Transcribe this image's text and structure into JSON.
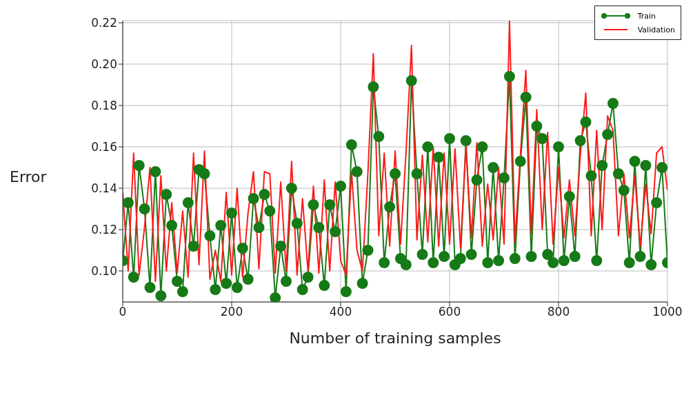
{
  "chart_data": {
    "type": "line",
    "xlabel": "Number of training samples",
    "ylabel": "Error",
    "x": [
      0,
      10,
      20,
      30,
      40,
      50,
      60,
      70,
      80,
      90,
      100,
      110,
      120,
      130,
      140,
      150,
      160,
      170,
      180,
      190,
      200,
      210,
      220,
      230,
      240,
      250,
      260,
      270,
      280,
      290,
      300,
      310,
      320,
      330,
      340,
      350,
      360,
      370,
      380,
      390,
      400,
      410,
      420,
      430,
      440,
      450,
      460,
      470,
      480,
      490,
      500,
      510,
      520,
      530,
      540,
      550,
      560,
      570,
      580,
      590,
      600,
      610,
      620,
      630,
      640,
      650,
      660,
      670,
      680,
      690,
      700,
      710,
      720,
      730,
      740,
      750,
      760,
      770,
      780,
      790,
      800,
      810,
      820,
      830,
      840,
      850,
      860,
      870,
      880,
      890,
      900,
      910,
      920,
      930,
      940,
      950,
      960,
      970,
      980,
      990,
      1000
    ],
    "series": [
      {
        "name": "Train",
        "color": "#167a16",
        "marker": "circle",
        "values": [
          0.105,
          0.133,
          0.097,
          0.151,
          0.13,
          0.092,
          0.148,
          0.088,
          0.137,
          0.122,
          0.095,
          0.09,
          0.133,
          0.112,
          0.149,
          0.147,
          0.117,
          0.091,
          0.122,
          0.094,
          0.128,
          0.092,
          0.111,
          0.096,
          0.135,
          0.121,
          0.137,
          0.129,
          0.087,
          0.112,
          0.095,
          0.14,
          0.123,
          0.091,
          0.097,
          0.132,
          0.121,
          0.093,
          0.132,
          0.119,
          0.141,
          0.09,
          0.161,
          0.148,
          0.094,
          0.11,
          0.189,
          0.165,
          0.104,
          0.131,
          0.147,
          0.106,
          0.103,
          0.192,
          0.147,
          0.108,
          0.16,
          0.104,
          0.155,
          0.107,
          0.164,
          0.103,
          0.106,
          0.163,
          0.108,
          0.144,
          0.16,
          0.104,
          0.15,
          0.105,
          0.145,
          0.194,
          0.106,
          0.153,
          0.184,
          0.107,
          0.17,
          0.164,
          0.108,
          0.104,
          0.16,
          0.105,
          0.136,
          0.107,
          0.163,
          0.172,
          0.146,
          0.105,
          0.151,
          0.166,
          0.181,
          0.147,
          0.139,
          0.104,
          0.153,
          0.107,
          0.151,
          0.103,
          0.133,
          0.15,
          0.104
        ]
      },
      {
        "name": "Validation",
        "color": "#ff1a1a",
        "marker": "none",
        "values": [
          0.138,
          0.1,
          0.157,
          0.098,
          0.121,
          0.15,
          0.095,
          0.146,
          0.1,
          0.133,
          0.099,
          0.129,
          0.097,
          0.157,
          0.103,
          0.158,
          0.096,
          0.11,
          0.095,
          0.138,
          0.098,
          0.14,
          0.097,
          0.128,
          0.148,
          0.101,
          0.148,
          0.147,
          0.099,
          0.143,
          0.1,
          0.153,
          0.098,
          0.135,
          0.1,
          0.141,
          0.099,
          0.144,
          0.1,
          0.143,
          0.105,
          0.098,
          0.148,
          0.11,
          0.1,
          0.147,
          0.205,
          0.117,
          0.157,
          0.112,
          0.158,
          0.113,
          0.157,
          0.209,
          0.115,
          0.156,
          0.114,
          0.16,
          0.112,
          0.157,
          0.113,
          0.159,
          0.111,
          0.16,
          0.116,
          0.162,
          0.112,
          0.142,
          0.115,
          0.15,
          0.113,
          0.221,
          0.114,
          0.156,
          0.197,
          0.118,
          0.178,
          0.12,
          0.167,
          0.113,
          0.15,
          0.116,
          0.144,
          0.117,
          0.156,
          0.186,
          0.117,
          0.168,
          0.12,
          0.175,
          0.168,
          0.117,
          0.147,
          0.116,
          0.146,
          0.112,
          0.142,
          0.118,
          0.157,
          0.16,
          0.139
        ]
      }
    ],
    "xlim": [
      0,
      1000
    ],
    "xticks": [
      0,
      200,
      400,
      600,
      800,
      1000
    ],
    "ylim": [
      0.085,
      0.221
    ],
    "yticks": [
      {
        "value": 0.1,
        "label": "0.10"
      },
      {
        "value": 0.12,
        "label": "0.12"
      },
      {
        "value": 0.14,
        "label": "0.14"
      },
      {
        "value": 0.16,
        "label": "0.16"
      },
      {
        "value": 0.18,
        "label": "0.18"
      },
      {
        "value": 0.2,
        "label": "0.20"
      },
      {
        "value": 0.22,
        "label": "0.22"
      }
    ],
    "grid": true,
    "legend": "top right",
    "line_style": "solid"
  }
}
